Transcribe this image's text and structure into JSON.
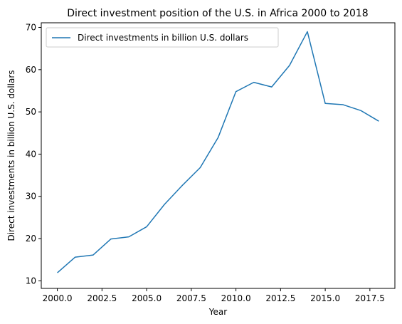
{
  "chart_data": {
    "type": "line",
    "title": "Direct investment position of the U.S. in Africa 2000 to 2018",
    "xlabel": "Year",
    "ylabel": "Direct investments in billion U.S. dollars",
    "xlim": [
      1999.1,
      2018.9
    ],
    "ylim": [
      8.2,
      71.1
    ],
    "xticks": [
      2000.0,
      2002.5,
      2005.0,
      2007.5,
      2010.0,
      2012.5,
      2015.0,
      2017.5
    ],
    "xtick_labels": [
      "2000.0",
      "2002.5",
      "2005.0",
      "2007.5",
      "2010.0",
      "2012.5",
      "2015.0",
      "2017.5"
    ],
    "yticks": [
      10,
      20,
      30,
      40,
      50,
      60,
      70
    ],
    "ytick_labels": [
      "10",
      "20",
      "30",
      "40",
      "50",
      "60",
      "70"
    ],
    "grid": false,
    "legend_position": "top-left",
    "series": [
      {
        "name": "Direct investments in billion U.S. dollars",
        "color": "#1f77b4",
        "x": [
          2000,
          2001,
          2002,
          2003,
          2004,
          2005,
          2006,
          2007,
          2008,
          2009,
          2010,
          2011,
          2012,
          2013,
          2014,
          2015,
          2016,
          2017,
          2018
        ],
        "y": [
          11.9,
          15.6,
          16.1,
          19.9,
          20.4,
          22.8,
          28.1,
          32.6,
          36.8,
          43.9,
          54.8,
          57.0,
          55.9,
          61.0,
          69.0,
          52.0,
          51.7,
          50.3,
          47.8
        ]
      }
    ]
  }
}
